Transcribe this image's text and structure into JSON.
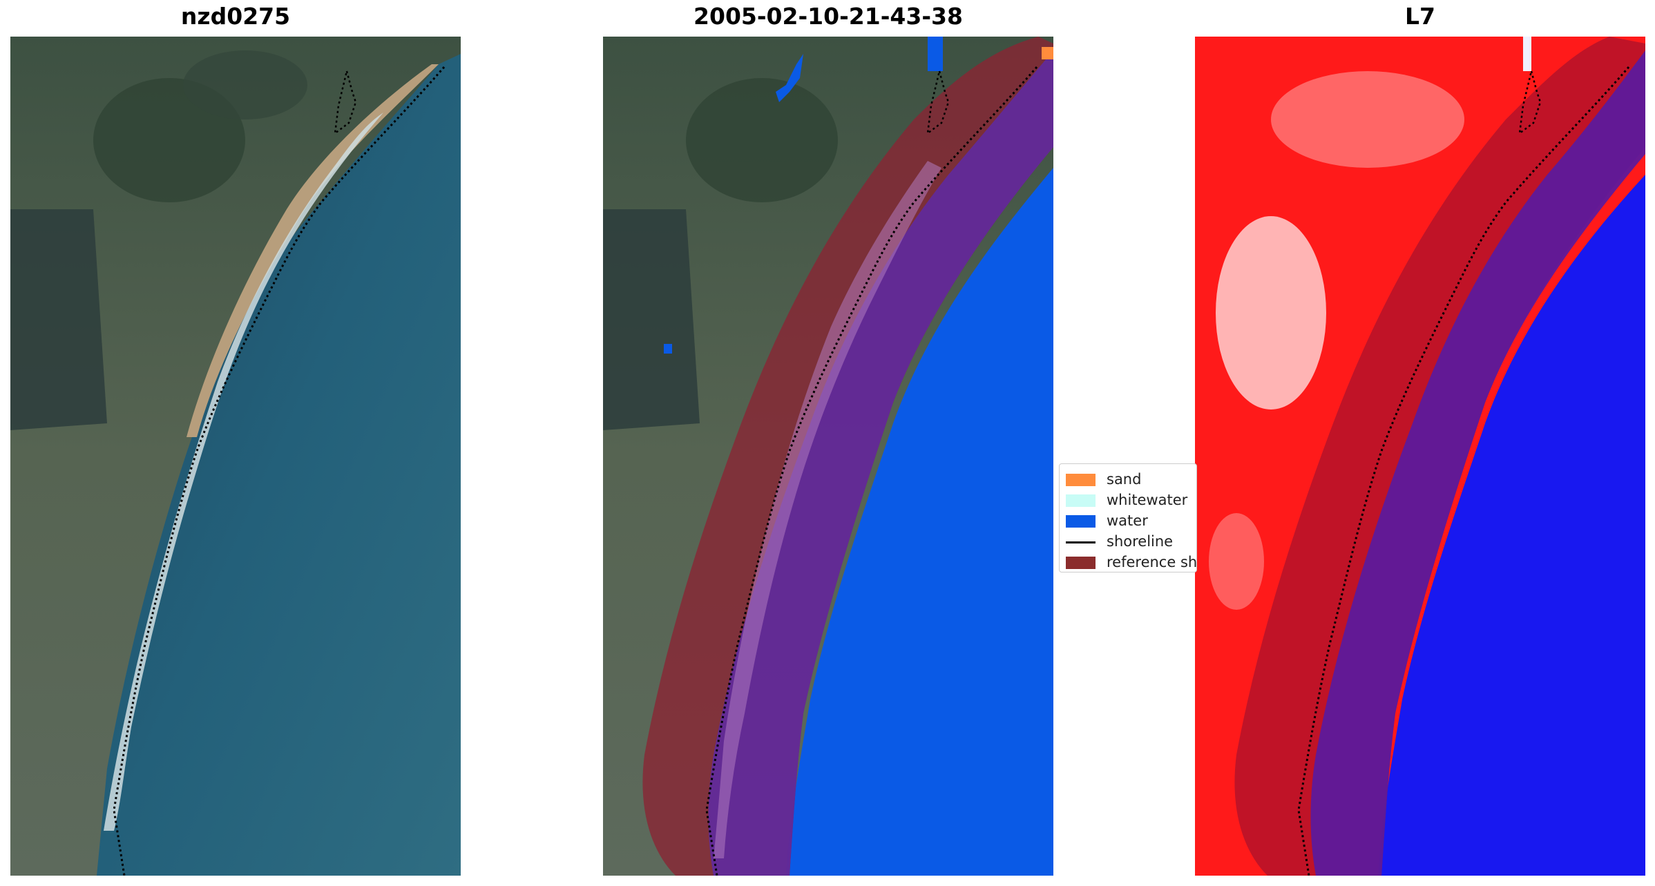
{
  "panels": [
    {
      "title": "nzd0275"
    },
    {
      "title": "2005-02-10-21-43-38"
    },
    {
      "title": "L7"
    }
  ],
  "legend": {
    "items": [
      {
        "label": "sand",
        "color": "#ff8c3c",
        "kind": "patch"
      },
      {
        "label": "whitewater",
        "color": "#c8fcf6",
        "kind": "patch"
      },
      {
        "label": "water",
        "color": "#0a5ae6",
        "kind": "patch"
      },
      {
        "label": "shoreline",
        "color": "#000000",
        "kind": "line"
      },
      {
        "label": "reference shoreline buffer",
        "color": "#8b2c2c",
        "kind": "patch"
      }
    ]
  },
  "colors": {
    "land": "#4a5f48",
    "sea": "#245a72",
    "sand": "#c8ae8a",
    "surf": "#e4ecee",
    "water_class": "#0a5ae6",
    "buffer": "#8b2433",
    "buffer_sea": "#5f2a9e",
    "mndwi_land": "#ff1a1a",
    "mndwi_water": "#1818f0"
  }
}
